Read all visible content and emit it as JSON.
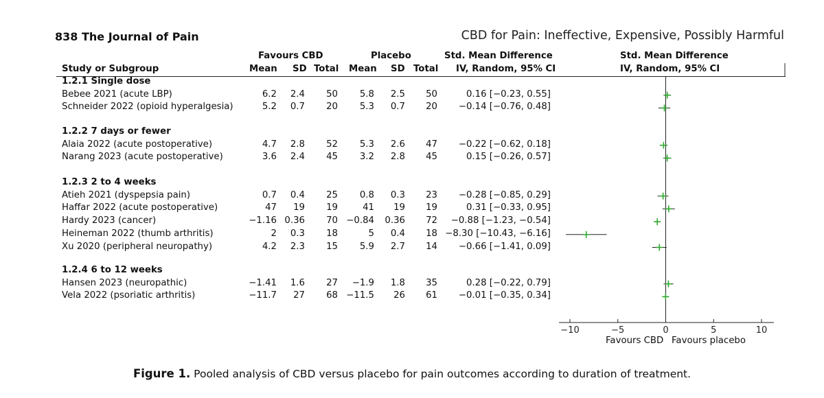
{
  "page_header": {
    "left": "838  The Journal of Pain",
    "right": "CBD for Pain: Ineffective, Expensive, Possibly Harmful"
  },
  "table_header": {
    "favours_cbd": "Favours CBD",
    "placebo": "Placebo",
    "smd": "Std. Mean Difference",
    "smd_plot": "Std. Mean Difference",
    "study": "Study or Subgroup",
    "mean": "Mean",
    "sd": "SD",
    "total": "Total",
    "mean2": "Mean",
    "sd2": "SD",
    "total2": "Total",
    "ci": "IV, Random, 95% CI",
    "ci_plot": "IV, Random, 95% CI"
  },
  "subgroups": [
    {
      "label": "1.2.1 Single dose",
      "studies": [
        {
          "study": "Bebee 2021 (acute LBP)",
          "m1": "6.2",
          "sd1": "2.4",
          "n1": "50",
          "m2": "5.8",
          "sd2": "2.5",
          "n2": "50",
          "ci": "0.16 [−0.23, 0.55]"
        },
        {
          "study": "Schneider 2022 (opioid hyperalgesia)",
          "m1": "5.2",
          "sd1": "0.7",
          "n1": "20",
          "m2": "5.3",
          "sd2": "0.7",
          "n2": "20",
          "ci": "−0.14 [−0.76, 0.48]"
        }
      ]
    },
    {
      "label": "1.2.2 7 days or fewer",
      "studies": [
        {
          "study": "Alaia 2022 (acute postoperative)",
          "m1": "4.7",
          "sd1": "2.8",
          "n1": "52",
          "m2": "5.3",
          "sd2": "2.6",
          "n2": "47",
          "ci": "−0.22 [−0.62, 0.18]"
        },
        {
          "study": "Narang 2023 (acute postoperative)",
          "m1": "3.6",
          "sd1": "2.4",
          "n1": "45",
          "m2": "3.2",
          "sd2": "2.8",
          "n2": "45",
          "ci": "0.15 [−0.26, 0.57]"
        }
      ]
    },
    {
      "label": "1.2.3 2 to 4 weeks",
      "studies": [
        {
          "study": "Atieh 2021 (dyspepsia pain)",
          "m1": "0.7",
          "sd1": "0.4",
          "n1": "25",
          "m2": "0.8",
          "sd2": "0.3",
          "n2": "23",
          "ci": "−0.28 [−0.85, 0.29]"
        },
        {
          "study": "Haffar 2022 (acute postoperative)",
          "m1": "47",
          "sd1": "19",
          "n1": "19",
          "m2": "41",
          "sd2": "19",
          "n2": "19",
          "ci": "0.31 [−0.33, 0.95]"
        },
        {
          "study": "Hardy 2023 (cancer)",
          "m1": "−1.16",
          "sd1": "0.36",
          "n1": "70",
          "m2": "−0.84",
          "sd2": "0.36",
          "n2": "72",
          "ci": "−0.88 [−1.23, −0.54]"
        },
        {
          "study": "Heineman 2022 (thumb arthritis)",
          "m1": "2",
          "sd1": "0.3",
          "n1": "18",
          "m2": "5",
          "sd2": "0.4",
          "n2": "18",
          "ci": "−8.30 [−10.43, −6.16]"
        },
        {
          "study": "Xu 2020 (peripheral neuropathy)",
          "m1": "4.2",
          "sd1": "2.3",
          "n1": "15",
          "m2": "5.9",
          "sd2": "2.7",
          "n2": "14",
          "ci": "−0.66 [−1.41, 0.09]"
        }
      ]
    },
    {
      "label": "1.2.4 6 to 12 weeks",
      "studies": [
        {
          "study": "Hansen 2023 (neuropathic)",
          "m1": "−1.41",
          "sd1": "1.6",
          "n1": "27",
          "m2": "−1.9",
          "sd2": "1.8",
          "n2": "35",
          "ci": "0.28 [−0.22, 0.79]"
        },
        {
          "study": "Vela 2022 (psoriatic arthritis)",
          "m1": "−11.7",
          "sd1": "27",
          "n1": "68",
          "m2": "−11.5",
          "sd2": "26",
          "n2": "61",
          "ci": "−0.01 [−0.35, 0.34]"
        }
      ]
    }
  ],
  "chart_data": {
    "type": "forest",
    "xlim": [
      -10,
      10
    ],
    "xticks": [
      "−10",
      "−5",
      "0",
      "5",
      "10"
    ],
    "xtick_values": [
      -10,
      -5,
      0,
      5,
      10
    ],
    "left_label": "Favours CBD",
    "right_label": "Favours placebo",
    "marker_color": "#2ea82e",
    "points": [
      {
        "study": "Bebee 2021 (acute LBP)",
        "est": 0.16,
        "lo": -0.23,
        "hi": 0.55
      },
      {
        "study": "Schneider 2022 (opioid hyperalgesia)",
        "est": -0.14,
        "lo": -0.76,
        "hi": 0.48
      },
      {
        "study": "Alaia 2022 (acute postoperative)",
        "est": -0.22,
        "lo": -0.62,
        "hi": 0.18
      },
      {
        "study": "Narang 2023 (acute postoperative)",
        "est": 0.15,
        "lo": -0.26,
        "hi": 0.57
      },
      {
        "study": "Atieh 2021 (dyspepsia pain)",
        "est": -0.28,
        "lo": -0.85,
        "hi": 0.29
      },
      {
        "study": "Haffar 2022 (acute postoperative)",
        "est": 0.31,
        "lo": -0.33,
        "hi": 0.95
      },
      {
        "study": "Hardy 2023 (cancer)",
        "est": -0.88,
        "lo": -1.23,
        "hi": -0.54
      },
      {
        "study": "Heineman 2022 (thumb arthritis)",
        "est": -8.3,
        "lo": -10.43,
        "hi": -6.16
      },
      {
        "study": "Xu 2020 (peripheral neuropathy)",
        "est": -0.66,
        "lo": -1.41,
        "hi": 0.09
      },
      {
        "study": "Hansen 2023 (neuropathic)",
        "est": 0.28,
        "lo": -0.22,
        "hi": 0.79
      },
      {
        "study": "Vela 2022 (psoriatic arthritis)",
        "est": -0.01,
        "lo": -0.35,
        "hi": 0.34
      }
    ]
  },
  "caption": {
    "label": "Figure 1.",
    "text": " Pooled analysis of CBD versus placebo for pain outcomes according to duration of treatment."
  }
}
